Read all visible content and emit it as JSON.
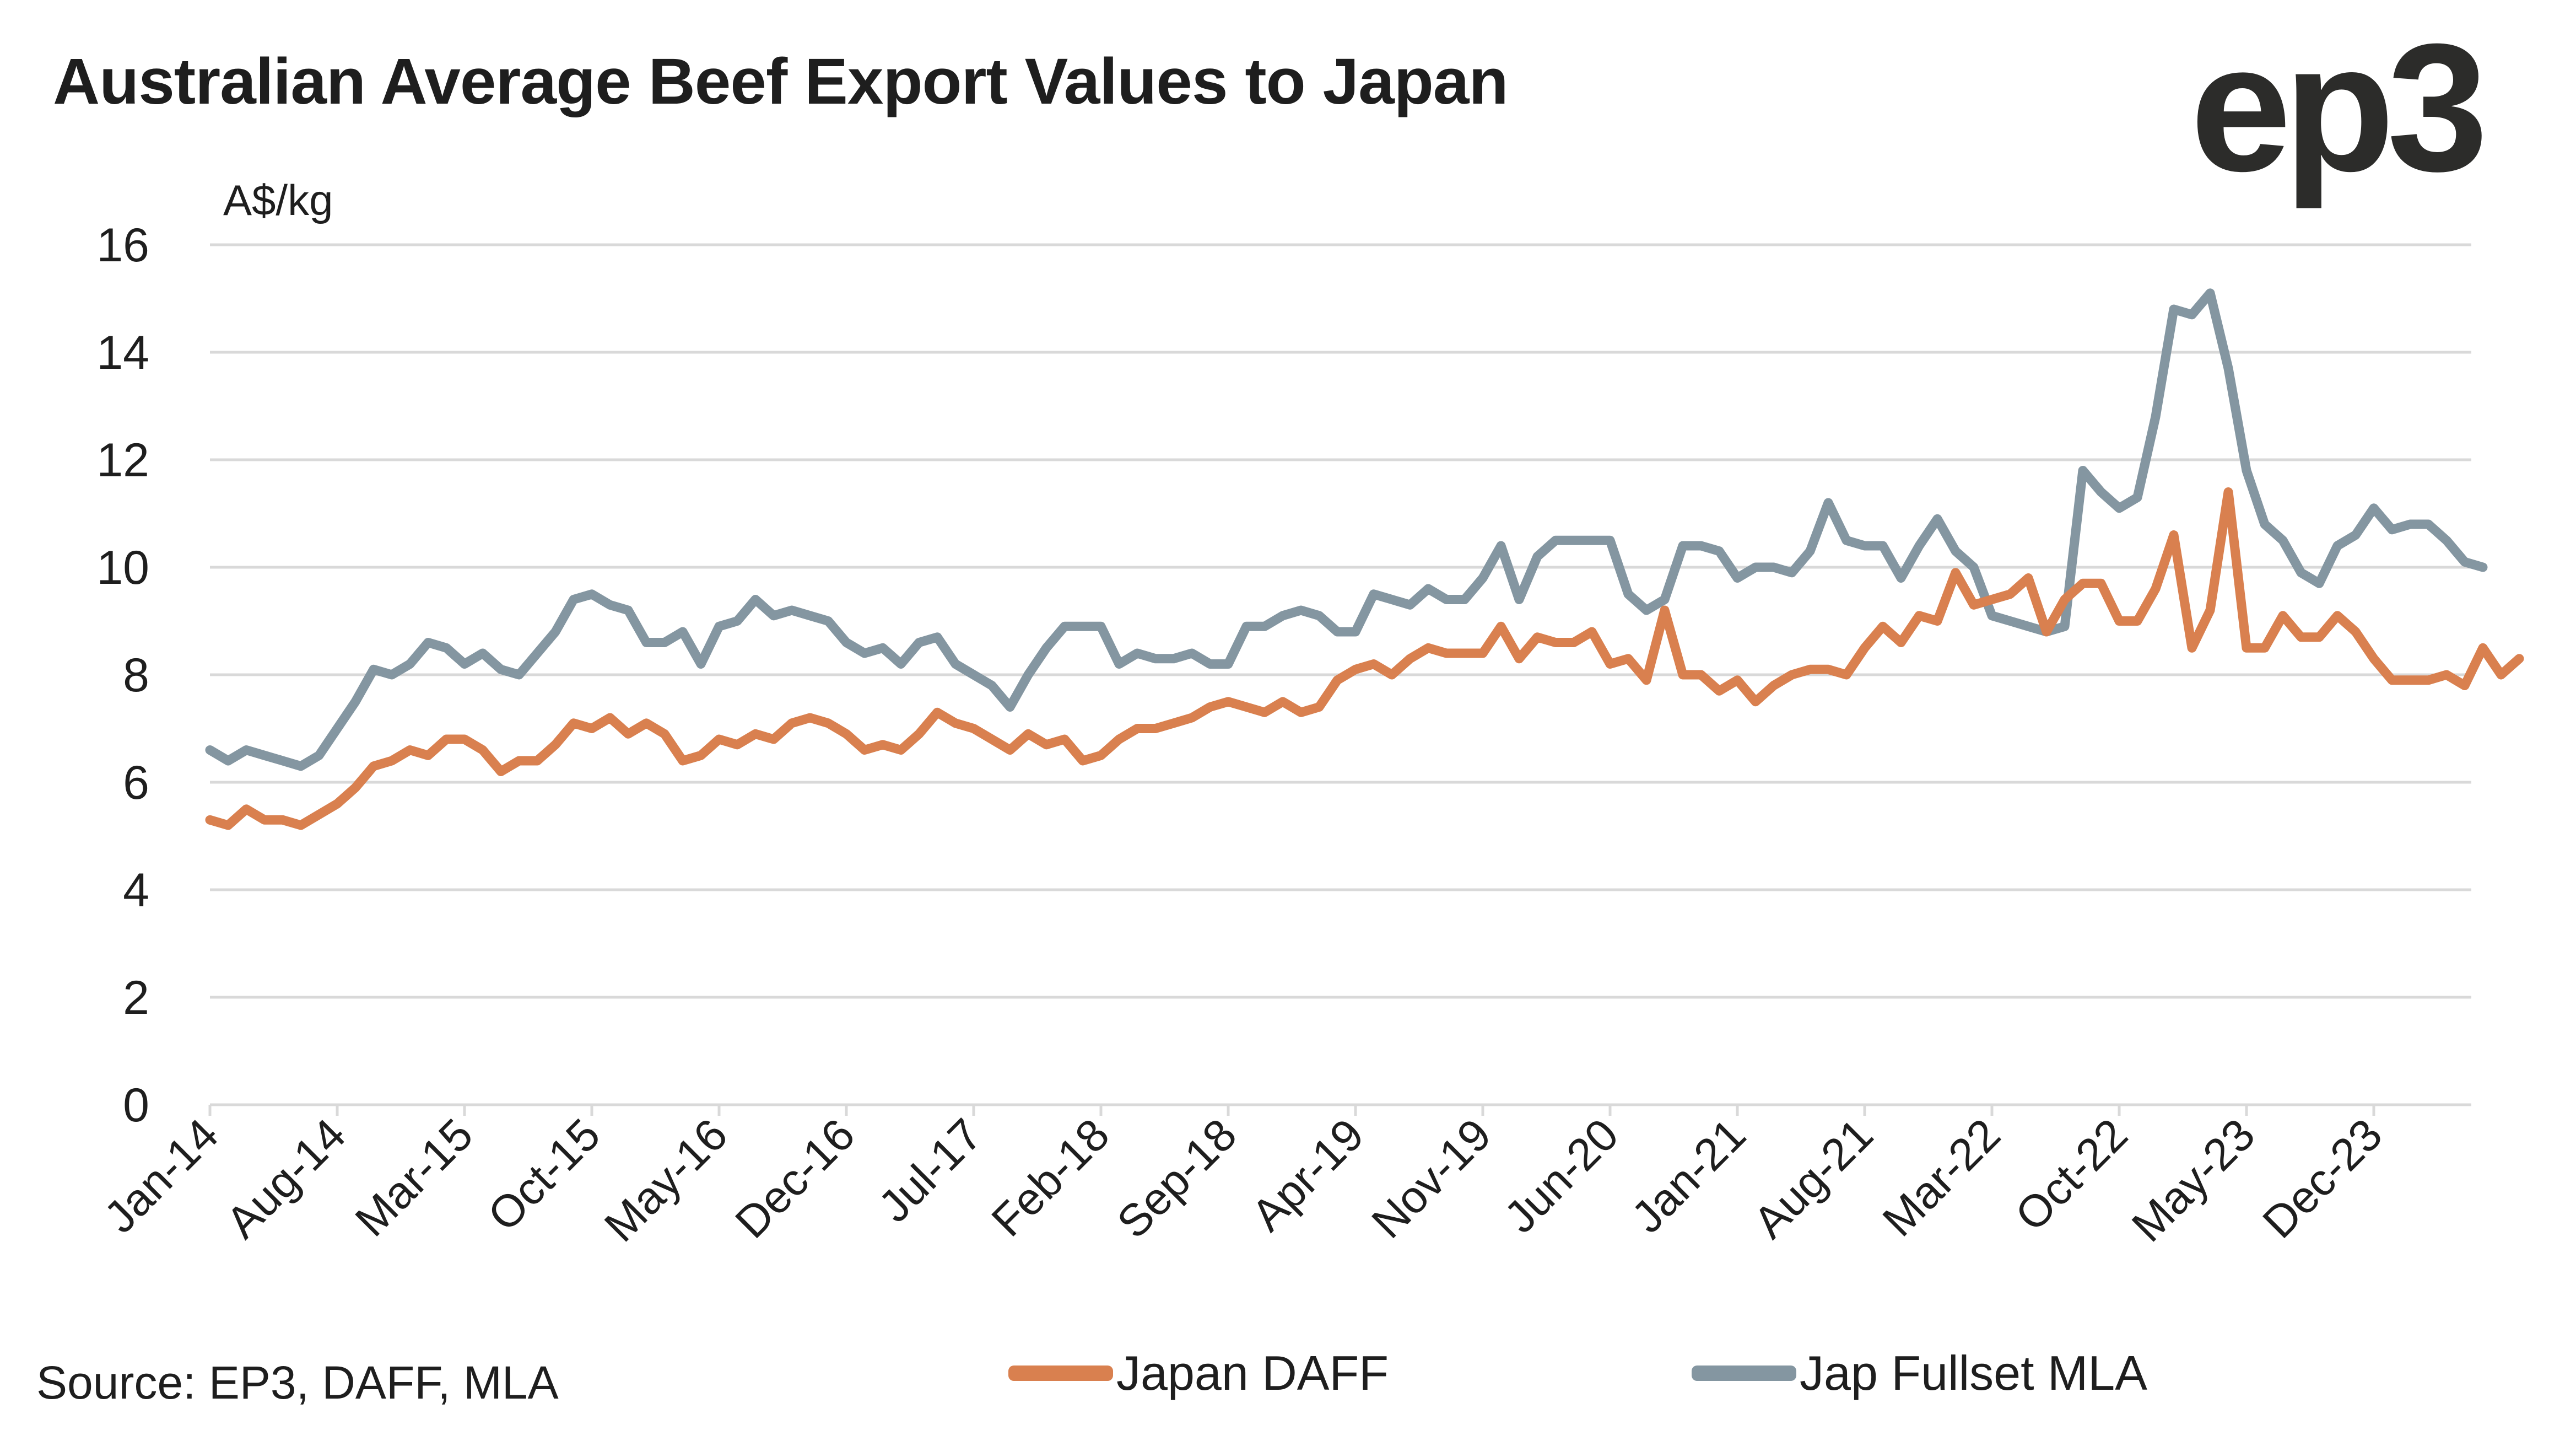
{
  "title": "Australian Average Beef Export Values to Japan",
  "logo": "ep3",
  "source": "Source: EP3, DAFF, MLA",
  "chart_data": {
    "type": "line",
    "title": "Australian Average Beef Export Values to Japan",
    "ylabel": "A$/kg",
    "xlabel": "",
    "ylim": [
      0,
      16
    ],
    "yticks": [
      0,
      2,
      4,
      6,
      8,
      10,
      12,
      14,
      16
    ],
    "grid": true,
    "legend_position": "bottom",
    "x_start": "Jan-14",
    "frequency": "monthly",
    "xtick_labels": [
      "Jan-14",
      "Aug-14",
      "Mar-15",
      "Oct-15",
      "May-16",
      "Dec-16",
      "Jul-17",
      "Feb-18",
      "Sep-18",
      "Apr-19",
      "Nov-19",
      "Jun-20",
      "Jan-21",
      "Aug-21",
      "Mar-22",
      "Oct-22",
      "May-23",
      "Dec-23"
    ],
    "series": [
      {
        "name": "Japan DAFF",
        "color": "#d9804f",
        "values": [
          5.3,
          5.2,
          5.5,
          5.3,
          5.3,
          5.2,
          5.4,
          5.6,
          5.9,
          6.3,
          6.4,
          6.6,
          6.5,
          6.8,
          6.8,
          6.6,
          6.2,
          6.4,
          6.4,
          6.7,
          7.1,
          7.0,
          7.2,
          6.9,
          7.1,
          6.9,
          6.4,
          6.5,
          6.8,
          6.7,
          6.9,
          6.8,
          7.1,
          7.2,
          7.1,
          6.9,
          6.6,
          6.7,
          6.6,
          6.9,
          7.3,
          7.1,
          7.0,
          6.8,
          6.6,
          6.9,
          6.7,
          6.8,
          6.4,
          6.5,
          6.8,
          7.0,
          7.0,
          7.1,
          7.2,
          7.4,
          7.5,
          7.4,
          7.3,
          7.5,
          7.3,
          7.4,
          7.9,
          8.1,
          8.2,
          8.0,
          8.3,
          8.5,
          8.4,
          8.4,
          8.4,
          8.9,
          8.3,
          8.7,
          8.6,
          8.6,
          8.8,
          8.2,
          8.3,
          7.9,
          9.2,
          8.0,
          8.0,
          7.7,
          7.9,
          7.5,
          7.8,
          8.0,
          8.1,
          8.1,
          8.0,
          8.5,
          8.9,
          8.6,
          9.1,
          9.0,
          9.9,
          9.3,
          9.4,
          9.5,
          9.8,
          8.8,
          9.4,
          9.7,
          9.7,
          9.0,
          9.0,
          9.6,
          10.6,
          8.5,
          9.2,
          11.4,
          8.5,
          8.5,
          9.1,
          8.7,
          8.7,
          9.1,
          8.8,
          8.3,
          7.9,
          7.9,
          7.9,
          8.0,
          7.8,
          8.5,
          8.0,
          8.3
        ]
      },
      {
        "name": "Jap Fullset MLA",
        "color": "#8496a1",
        "values": [
          6.6,
          6.4,
          6.6,
          6.5,
          6.4,
          6.3,
          6.5,
          7.0,
          7.5,
          8.1,
          8.0,
          8.2,
          8.6,
          8.5,
          8.2,
          8.4,
          8.1,
          8.0,
          8.4,
          8.8,
          9.4,
          9.5,
          9.3,
          9.2,
          8.6,
          8.6,
          8.8,
          8.2,
          8.9,
          9.0,
          9.4,
          9.1,
          9.2,
          9.1,
          9.0,
          8.6,
          8.4,
          8.5,
          8.2,
          8.6,
          8.7,
          8.2,
          8.0,
          7.8,
          7.4,
          8.0,
          8.5,
          8.9,
          8.9,
          8.9,
          8.2,
          8.4,
          8.3,
          8.3,
          8.4,
          8.2,
          8.2,
          8.9,
          8.9,
          9.1,
          9.2,
          9.1,
          8.8,
          8.8,
          9.5,
          9.4,
          9.3,
          9.6,
          9.4,
          9.4,
          9.8,
          10.4,
          9.4,
          10.2,
          10.5,
          10.5,
          10.5,
          10.5,
          9.5,
          9.2,
          9.4,
          10.4,
          10.4,
          10.3,
          9.8,
          10.0,
          10.0,
          9.9,
          10.3,
          11.2,
          10.5,
          10.4,
          10.4,
          9.8,
          10.4,
          10.9,
          10.3,
          10.0,
          9.1,
          9.0,
          8.9,
          8.8,
          8.9,
          11.8,
          11.4,
          11.1,
          11.3,
          12.8,
          14.8,
          14.7,
          15.1,
          13.7,
          11.8,
          10.8,
          10.5,
          9.9,
          9.7,
          10.4,
          10.6,
          11.1,
          10.7,
          10.8,
          10.8,
          10.5,
          10.1,
          10.0
        ]
      }
    ]
  }
}
